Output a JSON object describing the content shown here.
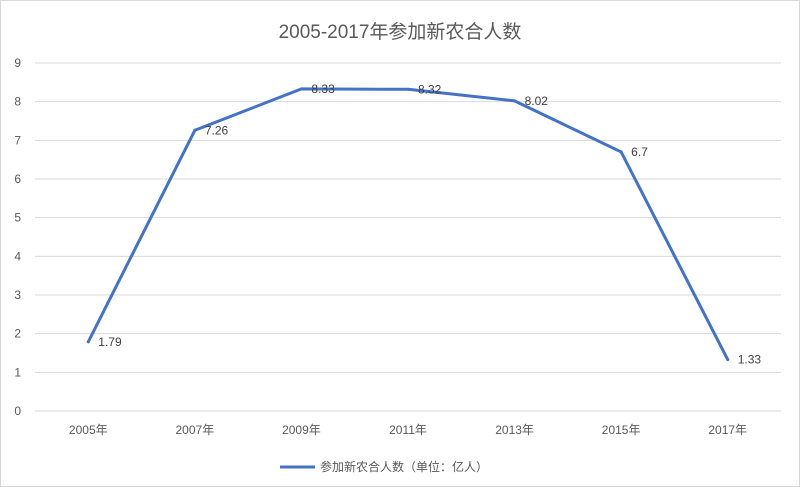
{
  "chart_data": {
    "type": "line",
    "title": "2005-2017年参加新农合人数",
    "categories": [
      "2005年",
      "2007年",
      "2009年",
      "2011年",
      "2013年",
      "2015年",
      "2017年"
    ],
    "series": [
      {
        "name": "参加新农合人数（单位：亿人）",
        "values": [
          1.79,
          7.26,
          8.33,
          8.32,
          8.02,
          6.7,
          1.33
        ],
        "data_labels": [
          "1.79",
          "7.26",
          "8.33",
          "8.32",
          "8.02",
          "6.7",
          "1.33"
        ],
        "color": "#4472c4"
      }
    ],
    "ylim": [
      0,
      9
    ],
    "yticks": [
      "0",
      "1",
      "2",
      "3",
      "4",
      "5",
      "6",
      "7",
      "8",
      "9"
    ],
    "grid": true,
    "legend_position": "bottom",
    "gridline_color": "#d9d9d9"
  }
}
